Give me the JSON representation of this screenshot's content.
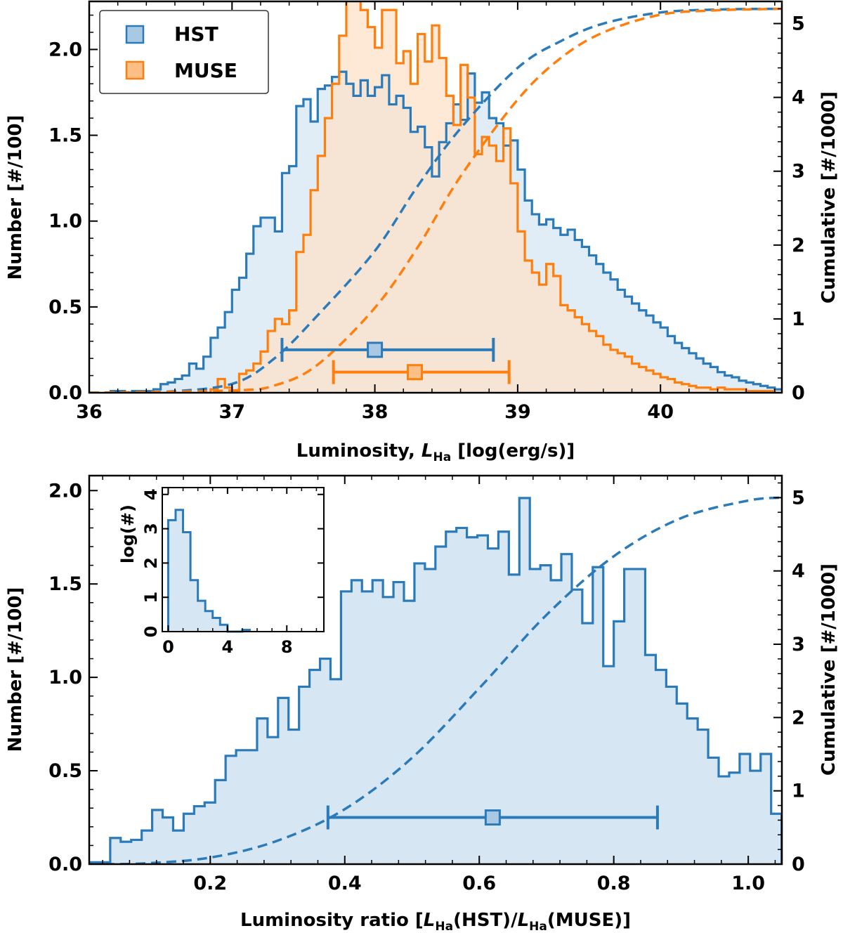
{
  "colors": {
    "hst": "#2b7bba",
    "hst_fill": "#d6e6f3",
    "muse": "#ff7f0e",
    "muse_fill": "#fde1c8",
    "overlap_fill": "#d9c7b8"
  },
  "chart_data": [
    {
      "type": "bar",
      "histtype": "step-filled",
      "xlabel_prefix": "Luminosity, ",
      "xlabel_var": "L",
      "xlabel_sub": "Ha",
      "xlabel_suffix": " [log(erg/s)]",
      "ylabel": "Number [#/100]",
      "y2label": "Cumulative [#/1000]",
      "xlim": [
        36.0,
        40.85
      ],
      "ylim": [
        0,
        2.28
      ],
      "y2lim": [
        0,
        5.3
      ],
      "xticks": [
        36,
        37,
        38,
        39,
        40
      ],
      "xticklabels": [
        "36",
        "37",
        "38",
        "39",
        "40"
      ],
      "yticks": [
        0,
        0.5,
        1.0,
        1.5,
        2.0
      ],
      "yticklabels": [
        "0.0",
        "0.5",
        "1.0",
        "1.5",
        "2.0"
      ],
      "y2ticks": [
        0,
        1,
        2,
        3,
        4,
        5
      ],
      "y2ticklabels": [
        "0",
        "1",
        "2",
        "3",
        "4",
        "5"
      ],
      "legend": {
        "position": "top-left",
        "entries": [
          "HST",
          "MUSE"
        ]
      },
      "bin_width": 0.05,
      "series": [
        {
          "name": "HST",
          "bin_start": 36.15,
          "values": [
            0.01,
            0.01,
            0.0,
            0.01,
            0.01,
            0.01,
            0.02,
            0.05,
            0.06,
            0.08,
            0.1,
            0.17,
            0.14,
            0.21,
            0.32,
            0.38,
            0.47,
            0.6,
            0.67,
            0.81,
            0.97,
            1.02,
            1.02,
            0.94,
            1.28,
            1.32,
            1.67,
            1.71,
            1.58,
            1.77,
            1.79,
            1.84,
            1.87,
            1.8,
            1.73,
            1.82,
            1.73,
            1.78,
            1.85,
            1.68,
            1.73,
            1.66,
            1.52,
            1.55,
            1.43,
            1.26,
            1.46,
            1.57,
            1.68,
            1.59,
            1.86,
            1.69,
            1.75,
            1.6,
            1.57,
            1.44,
            1.47,
            1.3,
            1.12,
            1.04,
            0.98,
            1.01,
            0.96,
            0.92,
            0.95,
            0.89,
            0.85,
            0.8,
            0.75,
            0.7,
            0.66,
            0.6,
            0.56,
            0.52,
            0.48,
            0.45,
            0.41,
            0.38,
            0.33,
            0.29,
            0.26,
            0.23,
            0.2,
            0.17,
            0.15,
            0.12,
            0.1,
            0.09,
            0.07,
            0.06,
            0.05,
            0.04,
            0.03,
            0.02,
            0.02,
            0.02,
            0.01,
            0.01,
            0.01,
            0.01,
            0.01,
            0.01,
            0.01,
            0.01
          ],
          "cumulative": [
            [
              36.0,
              0.0
            ],
            [
              36.5,
              0.01
            ],
            [
              37.0,
              0.12
            ],
            [
              37.3,
              0.47
            ],
            [
              37.6,
              1.05
            ],
            [
              38.0,
              1.92
            ],
            [
              38.3,
              2.8
            ],
            [
              38.6,
              3.58
            ],
            [
              39.0,
              4.4
            ],
            [
              39.3,
              4.76
            ],
            [
              39.6,
              5.0
            ],
            [
              40.0,
              5.15
            ],
            [
              40.4,
              5.19
            ],
            [
              40.85,
              5.2
            ]
          ],
          "errorbar": {
            "center": 38.0,
            "low": 37.35,
            "high": 38.83,
            "y": 0.25
          }
        },
        {
          "name": "MUSE",
          "bin_start": 36.85,
          "values": [
            0.02,
            0.08,
            0.03,
            0.01,
            0.11,
            0.13,
            0.17,
            0.24,
            0.36,
            0.43,
            0.4,
            0.48,
            0.82,
            0.92,
            1.18,
            1.38,
            1.6,
            1.8,
            2.08,
            2.31,
            2.32,
            2.23,
            2.13,
            2.01,
            2.23,
            2.23,
            1.92,
            1.99,
            1.8,
            2.09,
            1.93,
            2.14,
            1.95,
            1.73,
            1.56,
            1.91,
            1.72,
            1.39,
            1.49,
            1.44,
            1.35,
            1.54,
            1.22,
            0.94,
            0.77,
            0.7,
            0.63,
            0.75,
            0.68,
            0.51,
            0.48,
            0.44,
            0.4,
            0.36,
            0.33,
            0.28,
            0.25,
            0.23,
            0.21,
            0.17,
            0.15,
            0.13,
            0.11,
            0.09,
            0.08,
            0.06,
            0.05,
            0.04,
            0.03,
            0.03,
            0.02,
            0.03,
            0.02,
            0.02,
            0.02,
            0.01,
            0.01,
            0.01,
            0.01
          ],
          "cumulative": [
            [
              36.0,
              0.0
            ],
            [
              37.0,
              0.03
            ],
            [
              37.3,
              0.1
            ],
            [
              37.6,
              0.38
            ],
            [
              38.0,
              1.15
            ],
            [
              38.3,
              1.97
            ],
            [
              38.6,
              2.93
            ],
            [
              39.0,
              3.97
            ],
            [
              39.3,
              4.53
            ],
            [
              39.6,
              4.88
            ],
            [
              40.0,
              5.12
            ],
            [
              40.4,
              5.18
            ],
            [
              40.85,
              5.2
            ]
          ],
          "errorbar": {
            "center": 38.28,
            "low": 37.71,
            "high": 38.94,
            "y": 0.12
          }
        }
      ]
    },
    {
      "type": "bar",
      "histtype": "step-filled",
      "xlabel_prefix": "Luminosity ratio [",
      "xlabel_var1": "L",
      "xlabel_sub1": "Ha",
      "xlabel_mid": "(HST)/",
      "xlabel_var2": "L",
      "xlabel_sub2": "Ha",
      "xlabel_suffix": "(MUSE)]",
      "ylabel": "Number [#/100]",
      "y2label": "Cumulative [#/1000]",
      "xlim": [
        0.02,
        1.05
      ],
      "ylim": [
        0,
        2.08
      ],
      "y2lim": [
        0,
        5.3
      ],
      "xticks": [
        0.2,
        0.4,
        0.6,
        0.8,
        1.0
      ],
      "xticklabels": [
        "0.2",
        "0.4",
        "0.6",
        "0.8",
        "1.0"
      ],
      "yticks": [
        0,
        0.5,
        1.0,
        1.5,
        2.0
      ],
      "yticklabels": [
        "0.0",
        "0.5",
        "1.0",
        "1.5",
        "2.0"
      ],
      "y2ticks": [
        0,
        1,
        2,
        3,
        4,
        5
      ],
      "y2ticklabels": [
        "0",
        "1",
        "2",
        "3",
        "4",
        "5"
      ],
      "bin_width": 0.0156,
      "series": [
        {
          "name": "HST",
          "bin_start": 0.02,
          "values": [
            0.01,
            0.01,
            0.14,
            0.12,
            0.13,
            0.18,
            0.29,
            0.25,
            0.18,
            0.27,
            0.31,
            0.33,
            0.45,
            0.58,
            0.61,
            0.61,
            0.78,
            0.68,
            0.89,
            0.72,
            0.95,
            1.04,
            1.1,
            0.99,
            1.46,
            1.52,
            1.46,
            1.52,
            1.43,
            1.51,
            1.41,
            1.61,
            1.58,
            1.7,
            1.78,
            1.8,
            1.75,
            1.76,
            1.69,
            1.78,
            1.55,
            1.96,
            1.58,
            1.6,
            1.52,
            1.66,
            1.47,
            1.29,
            1.59,
            1.06,
            1.3,
            1.58,
            1.58,
            1.12,
            1.04,
            0.95,
            0.86,
            0.78,
            0.72,
            0.57,
            0.47,
            0.49,
            0.59,
            0.5,
            0.59,
            0.27
          ],
          "cumulative": [
            [
              0.02,
              0.0
            ],
            [
              0.1,
              0.01
            ],
            [
              0.2,
              0.09
            ],
            [
              0.3,
              0.32
            ],
            [
              0.4,
              0.75
            ],
            [
              0.5,
              1.45
            ],
            [
              0.6,
              2.4
            ],
            [
              0.7,
              3.4
            ],
            [
              0.8,
              4.2
            ],
            [
              0.9,
              4.72
            ],
            [
              1.0,
              4.96
            ],
            [
              1.05,
              5.0
            ]
          ],
          "errorbar": {
            "center": 0.62,
            "low": 0.375,
            "high": 0.865,
            "y": 0.25
          }
        }
      ],
      "inset": {
        "ylabel": "log(#)",
        "xlim": [
          -0.4,
          10.5
        ],
        "ylim": [
          0,
          4.2
        ],
        "xticks": [
          0,
          4,
          8
        ],
        "xticklabels": [
          "0",
          "4",
          "8"
        ],
        "yticks": [
          0,
          1,
          2,
          3,
          4
        ],
        "yticklabels": [
          "0",
          "1",
          "2",
          "3",
          "4"
        ],
        "bin_width": 0.5,
        "bin_start": 0.0,
        "values": [
          3.25,
          3.55,
          2.9,
          1.5,
          0.9,
          0.6,
          0.4,
          0.2,
          0.0,
          0.0,
          0.05
        ]
      }
    }
  ]
}
